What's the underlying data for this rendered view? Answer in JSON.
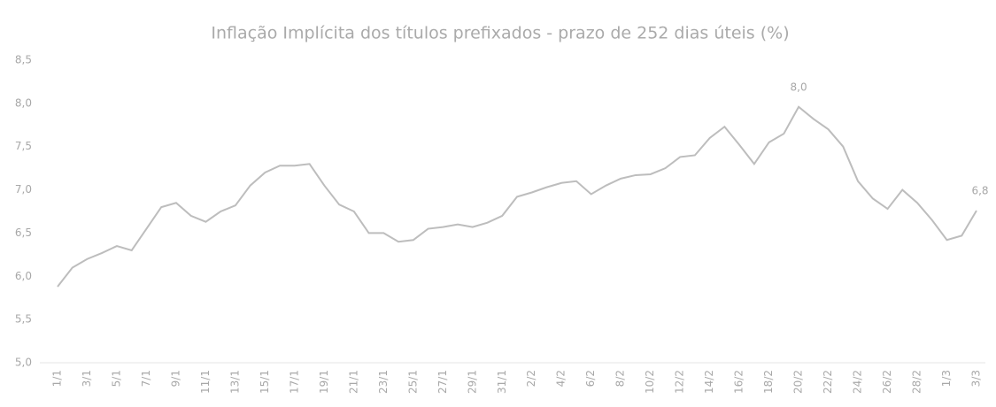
{
  "chart_data": {
    "type": "line",
    "title": "Inflação Implícita dos títulos prefixados - prazo de 252 dias úteis (%)",
    "categories": [
      "1/1",
      null,
      "3/1",
      null,
      "5/1",
      null,
      "7/1",
      null,
      "9/1",
      null,
      "11/1",
      null,
      "13/1",
      null,
      "15/1",
      null,
      "17/1",
      null,
      "19/1",
      null,
      "21/1",
      null,
      "23/1",
      null,
      "25/1",
      null,
      "27/1",
      null,
      "29/1",
      null,
      "31/1",
      null,
      "2/2",
      null,
      "4/2",
      null,
      "6/2",
      null,
      "8/2",
      null,
      "10/2",
      null,
      "12/2",
      null,
      "14/2",
      null,
      "16/2",
      null,
      "18/2",
      null,
      "20/2",
      null,
      "22/2",
      null,
      "24/2",
      null,
      "26/2",
      null,
      "28/2",
      null,
      "1/3",
      null,
      "3/3"
    ],
    "series": [
      {
        "name": "Inflação Implícita",
        "color": "#bdbdbd",
        "values": [
          5.88,
          6.1,
          6.2,
          6.27,
          6.35,
          6.3,
          6.55,
          6.8,
          6.85,
          6.7,
          6.63,
          6.75,
          6.82,
          7.05,
          7.2,
          7.28,
          7.28,
          7.3,
          7.05,
          6.83,
          6.75,
          6.5,
          6.5,
          6.4,
          6.42,
          6.55,
          6.57,
          6.6,
          6.57,
          6.62,
          6.7,
          6.92,
          6.97,
          7.03,
          7.08,
          7.1,
          6.95,
          7.05,
          7.13,
          7.17,
          7.18,
          7.25,
          7.38,
          7.4,
          7.6,
          7.73,
          7.52,
          7.3,
          7.55,
          7.65,
          7.96,
          7.82,
          7.7,
          7.5,
          7.1,
          6.9,
          6.78,
          7.0,
          6.85,
          6.65,
          6.42,
          6.47,
          6.76
        ],
        "value_labels": [
          null,
          null,
          null,
          null,
          null,
          null,
          null,
          null,
          null,
          null,
          null,
          null,
          null,
          null,
          null,
          null,
          null,
          null,
          null,
          null,
          null,
          null,
          null,
          null,
          null,
          null,
          null,
          null,
          null,
          null,
          null,
          null,
          null,
          null,
          null,
          null,
          null,
          null,
          null,
          null,
          null,
          null,
          null,
          null,
          null,
          null,
          null,
          null,
          null,
          null,
          "8,0",
          null,
          null,
          null,
          null,
          null,
          null,
          null,
          null,
          null,
          null,
          null,
          "6,8"
        ]
      }
    ],
    "ylim": [
      5,
      8.5
    ],
    "yticks": [
      {
        "value": 5,
        "label": "5,0"
      },
      {
        "value": 5.5,
        "label": "5,5"
      },
      {
        "value": 6,
        "label": "6,0"
      },
      {
        "value": 6.5,
        "label": "6,5"
      },
      {
        "value": 7,
        "label": "7,0"
      },
      {
        "value": 7.5,
        "label": "7,5"
      },
      {
        "value": 8,
        "label": "8,0"
      },
      {
        "value": 8.5,
        "label": "8,5"
      }
    ],
    "grid": false
  }
}
